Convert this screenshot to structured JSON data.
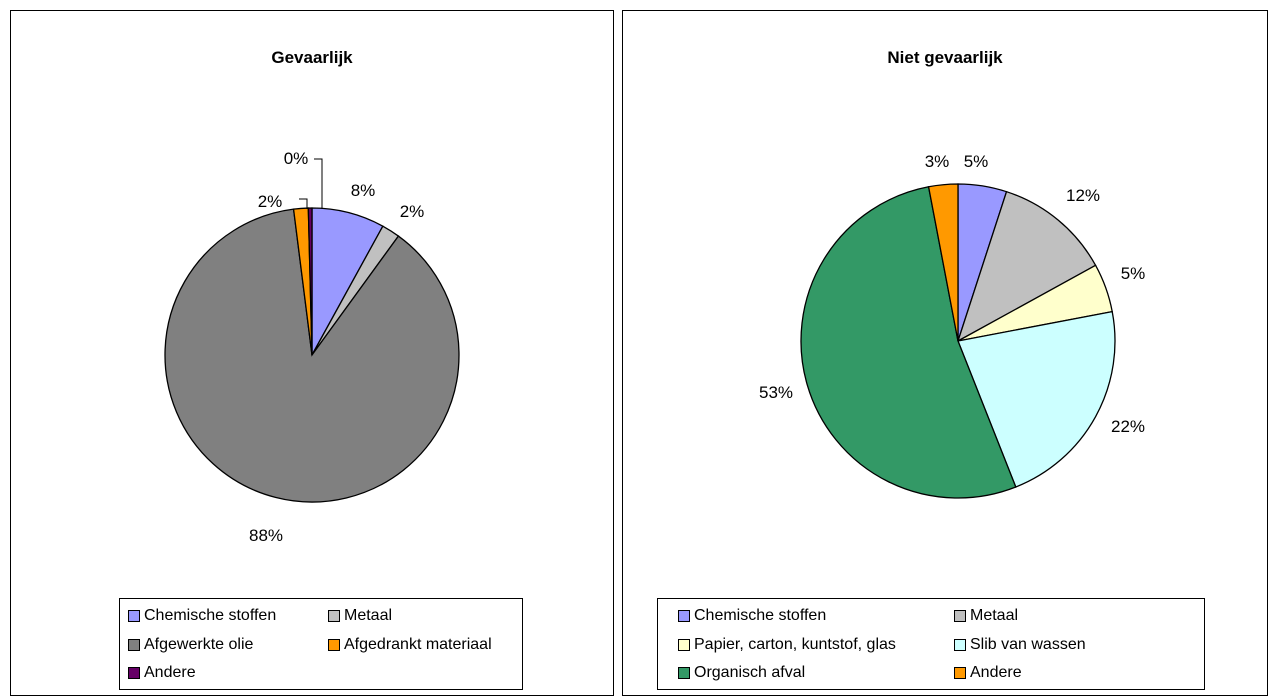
{
  "colors": {
    "chemische": "#9999FF",
    "metaal": "#C0C0C0",
    "olie": "#808080",
    "afgedrankt": "#FF9900",
    "andere_dark": "#660066",
    "papier": "#FFFFCC",
    "slib": "#CCFFFF",
    "organisch": "#339966",
    "andere_orange": "#FF9900"
  },
  "chart_data": [
    {
      "type": "pie",
      "title": "Gevaarlijk",
      "slices": [
        {
          "name": "Chemische stoffen",
          "value": 8,
          "label": "8%",
          "color": "#9999FF"
        },
        {
          "name": "Metaal",
          "value": 2,
          "label": "2%",
          "color": "#C0C0C0"
        },
        {
          "name": "Afgewerkte olie",
          "value": 88,
          "label": "88%",
          "color": "#808080"
        },
        {
          "name": "Afgedrankt materiaal",
          "value": 1.6,
          "label": "2%",
          "color": "#FF9900"
        },
        {
          "name": "Andere",
          "value": 0.4,
          "label": "0%",
          "color": "#660066"
        }
      ],
      "legend": [
        "Chemische stoffen",
        "Metaal",
        "Afgewerkte olie",
        "Afgedrankt materiaal",
        "Andere"
      ],
      "legend_placement": "bottom"
    },
    {
      "type": "pie",
      "title": "Niet gevaarlijk",
      "slices": [
        {
          "name": "Chemische stoffen",
          "value": 5,
          "label": "5%",
          "color": "#9999FF"
        },
        {
          "name": "Metaal",
          "value": 12,
          "label": "12%",
          "color": "#C0C0C0"
        },
        {
          "name": "Papier, carton, kuntstof, glas",
          "value": 5,
          "label": "5%",
          "color": "#FFFFCC"
        },
        {
          "name": "Slib van wassen",
          "value": 22,
          "label": "22%",
          "color": "#CCFFFF"
        },
        {
          "name": "Organisch afval",
          "value": 53,
          "label": "53%",
          "color": "#339966"
        },
        {
          "name": "Andere",
          "value": 3,
          "label": "3%",
          "color": "#FF9900"
        }
      ],
      "legend": [
        "Chemische stoffen",
        "Metaal",
        "Papier, carton, kuntstof, glas",
        "Slib van wassen",
        "Organisch afval",
        "Andere"
      ],
      "legend_placement": "bottom"
    }
  ]
}
